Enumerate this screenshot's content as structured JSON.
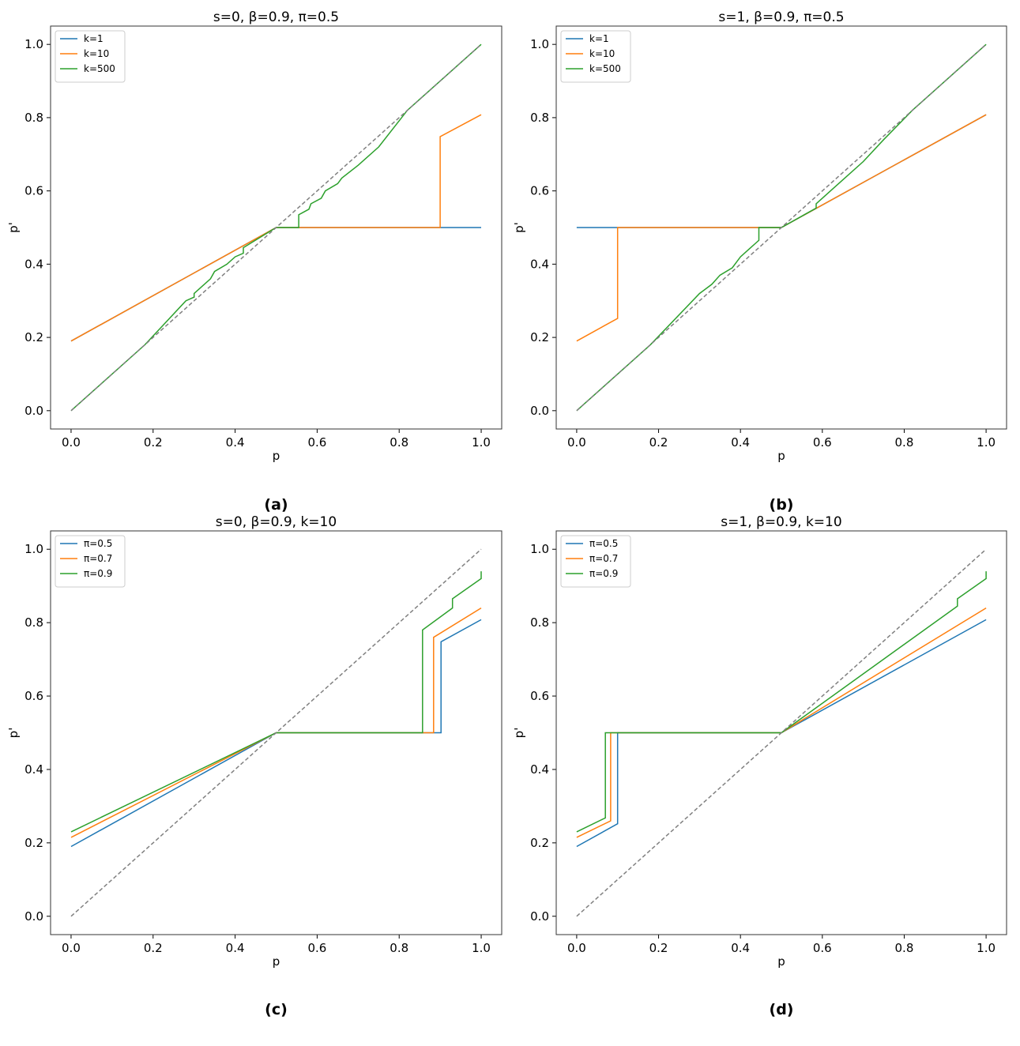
{
  "chart_data": [
    {
      "type": "line",
      "panel_label": "(a)",
      "title": "s=0, β=0.9, π=0.5",
      "xlabel": "p",
      "ylabel": "p'",
      "xlim": [
        -0.05,
        1.05
      ],
      "ylim": [
        -0.05,
        1.05
      ],
      "xticks": [
        "0.0",
        "0.2",
        "0.4",
        "0.6",
        "0.8",
        "1.0"
      ],
      "yticks": [
        "0.0",
        "0.2",
        "0.4",
        "0.6",
        "0.8",
        "1.0"
      ],
      "legend": "top-left",
      "series": [
        {
          "name": "k=1",
          "color": "#1f77b4",
          "points": [
            [
              0,
              0.19
            ],
            [
              0.5,
              0.5
            ],
            [
              1,
              0.5
            ]
          ]
        },
        {
          "name": "k=10",
          "color": "#ff7f0e",
          "points": [
            [
              0,
              0.19
            ],
            [
              0.5,
              0.5
            ],
            [
              0.9,
              0.5
            ],
            [
              0.9,
              0.748
            ],
            [
              1,
              0.808
            ]
          ]
        },
        {
          "name": "k=500",
          "color": "#2ca02c",
          "points": [
            [
              0,
              0
            ],
            [
              0.18,
              0.18
            ],
            [
              0.28,
              0.3
            ],
            [
              0.3,
              0.31
            ],
            [
              0.3,
              0.32
            ],
            [
              0.34,
              0.36
            ],
            [
              0.35,
              0.38
            ],
            [
              0.38,
              0.4
            ],
            [
              0.4,
              0.42
            ],
            [
              0.42,
              0.43
            ],
            [
              0.42,
              0.445
            ],
            [
              0.5,
              0.5
            ],
            [
              0.555,
              0.5
            ],
            [
              0.555,
              0.535
            ],
            [
              0.58,
              0.55
            ],
            [
              0.585,
              0.565
            ],
            [
              0.61,
              0.58
            ],
            [
              0.62,
              0.6
            ],
            [
              0.65,
              0.62
            ],
            [
              0.66,
              0.635
            ],
            [
              0.7,
              0.67
            ],
            [
              0.75,
              0.72
            ],
            [
              0.82,
              0.82
            ],
            [
              1,
              1
            ]
          ]
        },
        {
          "name": "",
          "color": "#808080",
          "dashed": true,
          "points": [
            [
              0,
              0
            ],
            [
              1,
              1
            ]
          ]
        }
      ]
    },
    {
      "type": "line",
      "panel_label": "(b)",
      "title": "s=1, β=0.9, π=0.5",
      "xlabel": "p",
      "ylabel": "p'",
      "xlim": [
        -0.05,
        1.05
      ],
      "ylim": [
        -0.05,
        1.05
      ],
      "xticks": [
        "0.0",
        "0.2",
        "0.4",
        "0.6",
        "0.8",
        "1.0"
      ],
      "yticks": [
        "0.0",
        "0.2",
        "0.4",
        "0.6",
        "0.8",
        "1.0"
      ],
      "legend": "top-left",
      "series": [
        {
          "name": "k=1",
          "color": "#1f77b4",
          "points": [
            [
              0,
              0.5
            ],
            [
              0.5,
              0.5
            ],
            [
              1,
              0.808
            ]
          ]
        },
        {
          "name": "k=10",
          "color": "#ff7f0e",
          "points": [
            [
              0,
              0.19
            ],
            [
              0.1,
              0.252
            ],
            [
              0.1,
              0.5
            ],
            [
              0.5,
              0.5
            ],
            [
              1,
              0.808
            ]
          ]
        },
        {
          "name": "k=500",
          "color": "#2ca02c",
          "points": [
            [
              0,
              0
            ],
            [
              0.18,
              0.18
            ],
            [
              0.3,
              0.32
            ],
            [
              0.33,
              0.345
            ],
            [
              0.35,
              0.37
            ],
            [
              0.38,
              0.39
            ],
            [
              0.4,
              0.42
            ],
            [
              0.42,
              0.44
            ],
            [
              0.44,
              0.46
            ],
            [
              0.445,
              0.465
            ],
            [
              0.445,
              0.5
            ],
            [
              0.5,
              0.5
            ],
            [
              0.585,
              0.553
            ],
            [
              0.585,
              0.565
            ],
            [
              0.6,
              0.58
            ],
            [
              0.62,
              0.6
            ],
            [
              0.65,
              0.63
            ],
            [
              0.7,
              0.68
            ],
            [
              0.75,
              0.74
            ],
            [
              0.82,
              0.82
            ],
            [
              1,
              1
            ]
          ]
        },
        {
          "name": "",
          "color": "#808080",
          "dashed": true,
          "points": [
            [
              0,
              0
            ],
            [
              1,
              1
            ]
          ]
        }
      ]
    },
    {
      "type": "line",
      "panel_label": "(c)",
      "title": "s=0, β=0.9, k=10",
      "xlabel": "p",
      "ylabel": "p'",
      "xlim": [
        -0.05,
        1.05
      ],
      "ylim": [
        -0.05,
        1.05
      ],
      "xticks": [
        "0.0",
        "0.2",
        "0.4",
        "0.6",
        "0.8",
        "1.0"
      ],
      "yticks": [
        "0.0",
        "0.2",
        "0.4",
        "0.6",
        "0.8",
        "1.0"
      ],
      "legend": "top-left",
      "series": [
        {
          "name": "π=0.5",
          "color": "#1f77b4",
          "points": [
            [
              0,
              0.19
            ],
            [
              0.5,
              0.5
            ],
            [
              0.902,
              0.5
            ],
            [
              0.902,
              0.748
            ],
            [
              1,
              0.808
            ]
          ]
        },
        {
          "name": "π=0.7",
          "color": "#ff7f0e",
          "points": [
            [
              0,
              0.215
            ],
            [
              0.5,
              0.5
            ],
            [
              0.884,
              0.5
            ],
            [
              0.884,
              0.76
            ],
            [
              1,
              0.84
            ]
          ]
        },
        {
          "name": "π=0.9",
          "color": "#2ca02c",
          "points": [
            [
              0,
              0.23
            ],
            [
              0.5,
              0.5
            ],
            [
              0.857,
              0.5
            ],
            [
              0.857,
              0.78
            ],
            [
              0.93,
              0.84
            ],
            [
              0.93,
              0.865
            ],
            [
              1,
              0.92
            ],
            [
              1,
              0.94
            ]
          ]
        },
        {
          "name": "",
          "color": "#808080",
          "dashed": true,
          "points": [
            [
              0,
              0
            ],
            [
              1,
              1
            ]
          ]
        }
      ]
    },
    {
      "type": "line",
      "panel_label": "(d)",
      "title": "s=1, β=0.9, k=10",
      "xlabel": "p",
      "ylabel": "p'",
      "xlim": [
        -0.05,
        1.05
      ],
      "ylim": [
        -0.05,
        1.05
      ],
      "xticks": [
        "0.0",
        "0.2",
        "0.4",
        "0.6",
        "0.8",
        "1.0"
      ],
      "yticks": [
        "0.0",
        "0.2",
        "0.4",
        "0.6",
        "0.8",
        "1.0"
      ],
      "legend": "top-left",
      "series": [
        {
          "name": "π=0.5",
          "color": "#1f77b4",
          "points": [
            [
              0,
              0.19
            ],
            [
              0.1,
              0.252
            ],
            [
              0.1,
              0.5
            ],
            [
              0.5,
              0.5
            ],
            [
              1,
              0.808
            ]
          ]
        },
        {
          "name": "π=0.7",
          "color": "#ff7f0e",
          "points": [
            [
              0,
              0.215
            ],
            [
              0.083,
              0.26
            ],
            [
              0.083,
              0.5
            ],
            [
              0.5,
              0.5
            ],
            [
              1,
              0.84
            ]
          ]
        },
        {
          "name": "π=0.9",
          "color": "#2ca02c",
          "points": [
            [
              0,
              0.23
            ],
            [
              0.07,
              0.268
            ],
            [
              0.07,
              0.5
            ],
            [
              0.5,
              0.5
            ],
            [
              0.93,
              0.845
            ],
            [
              0.93,
              0.865
            ],
            [
              1,
              0.92
            ],
            [
              1,
              0.94
            ]
          ]
        },
        {
          "name": "",
          "color": "#808080",
          "dashed": true,
          "points": [
            [
              0,
              0
            ],
            [
              1,
              1
            ]
          ]
        }
      ]
    }
  ]
}
